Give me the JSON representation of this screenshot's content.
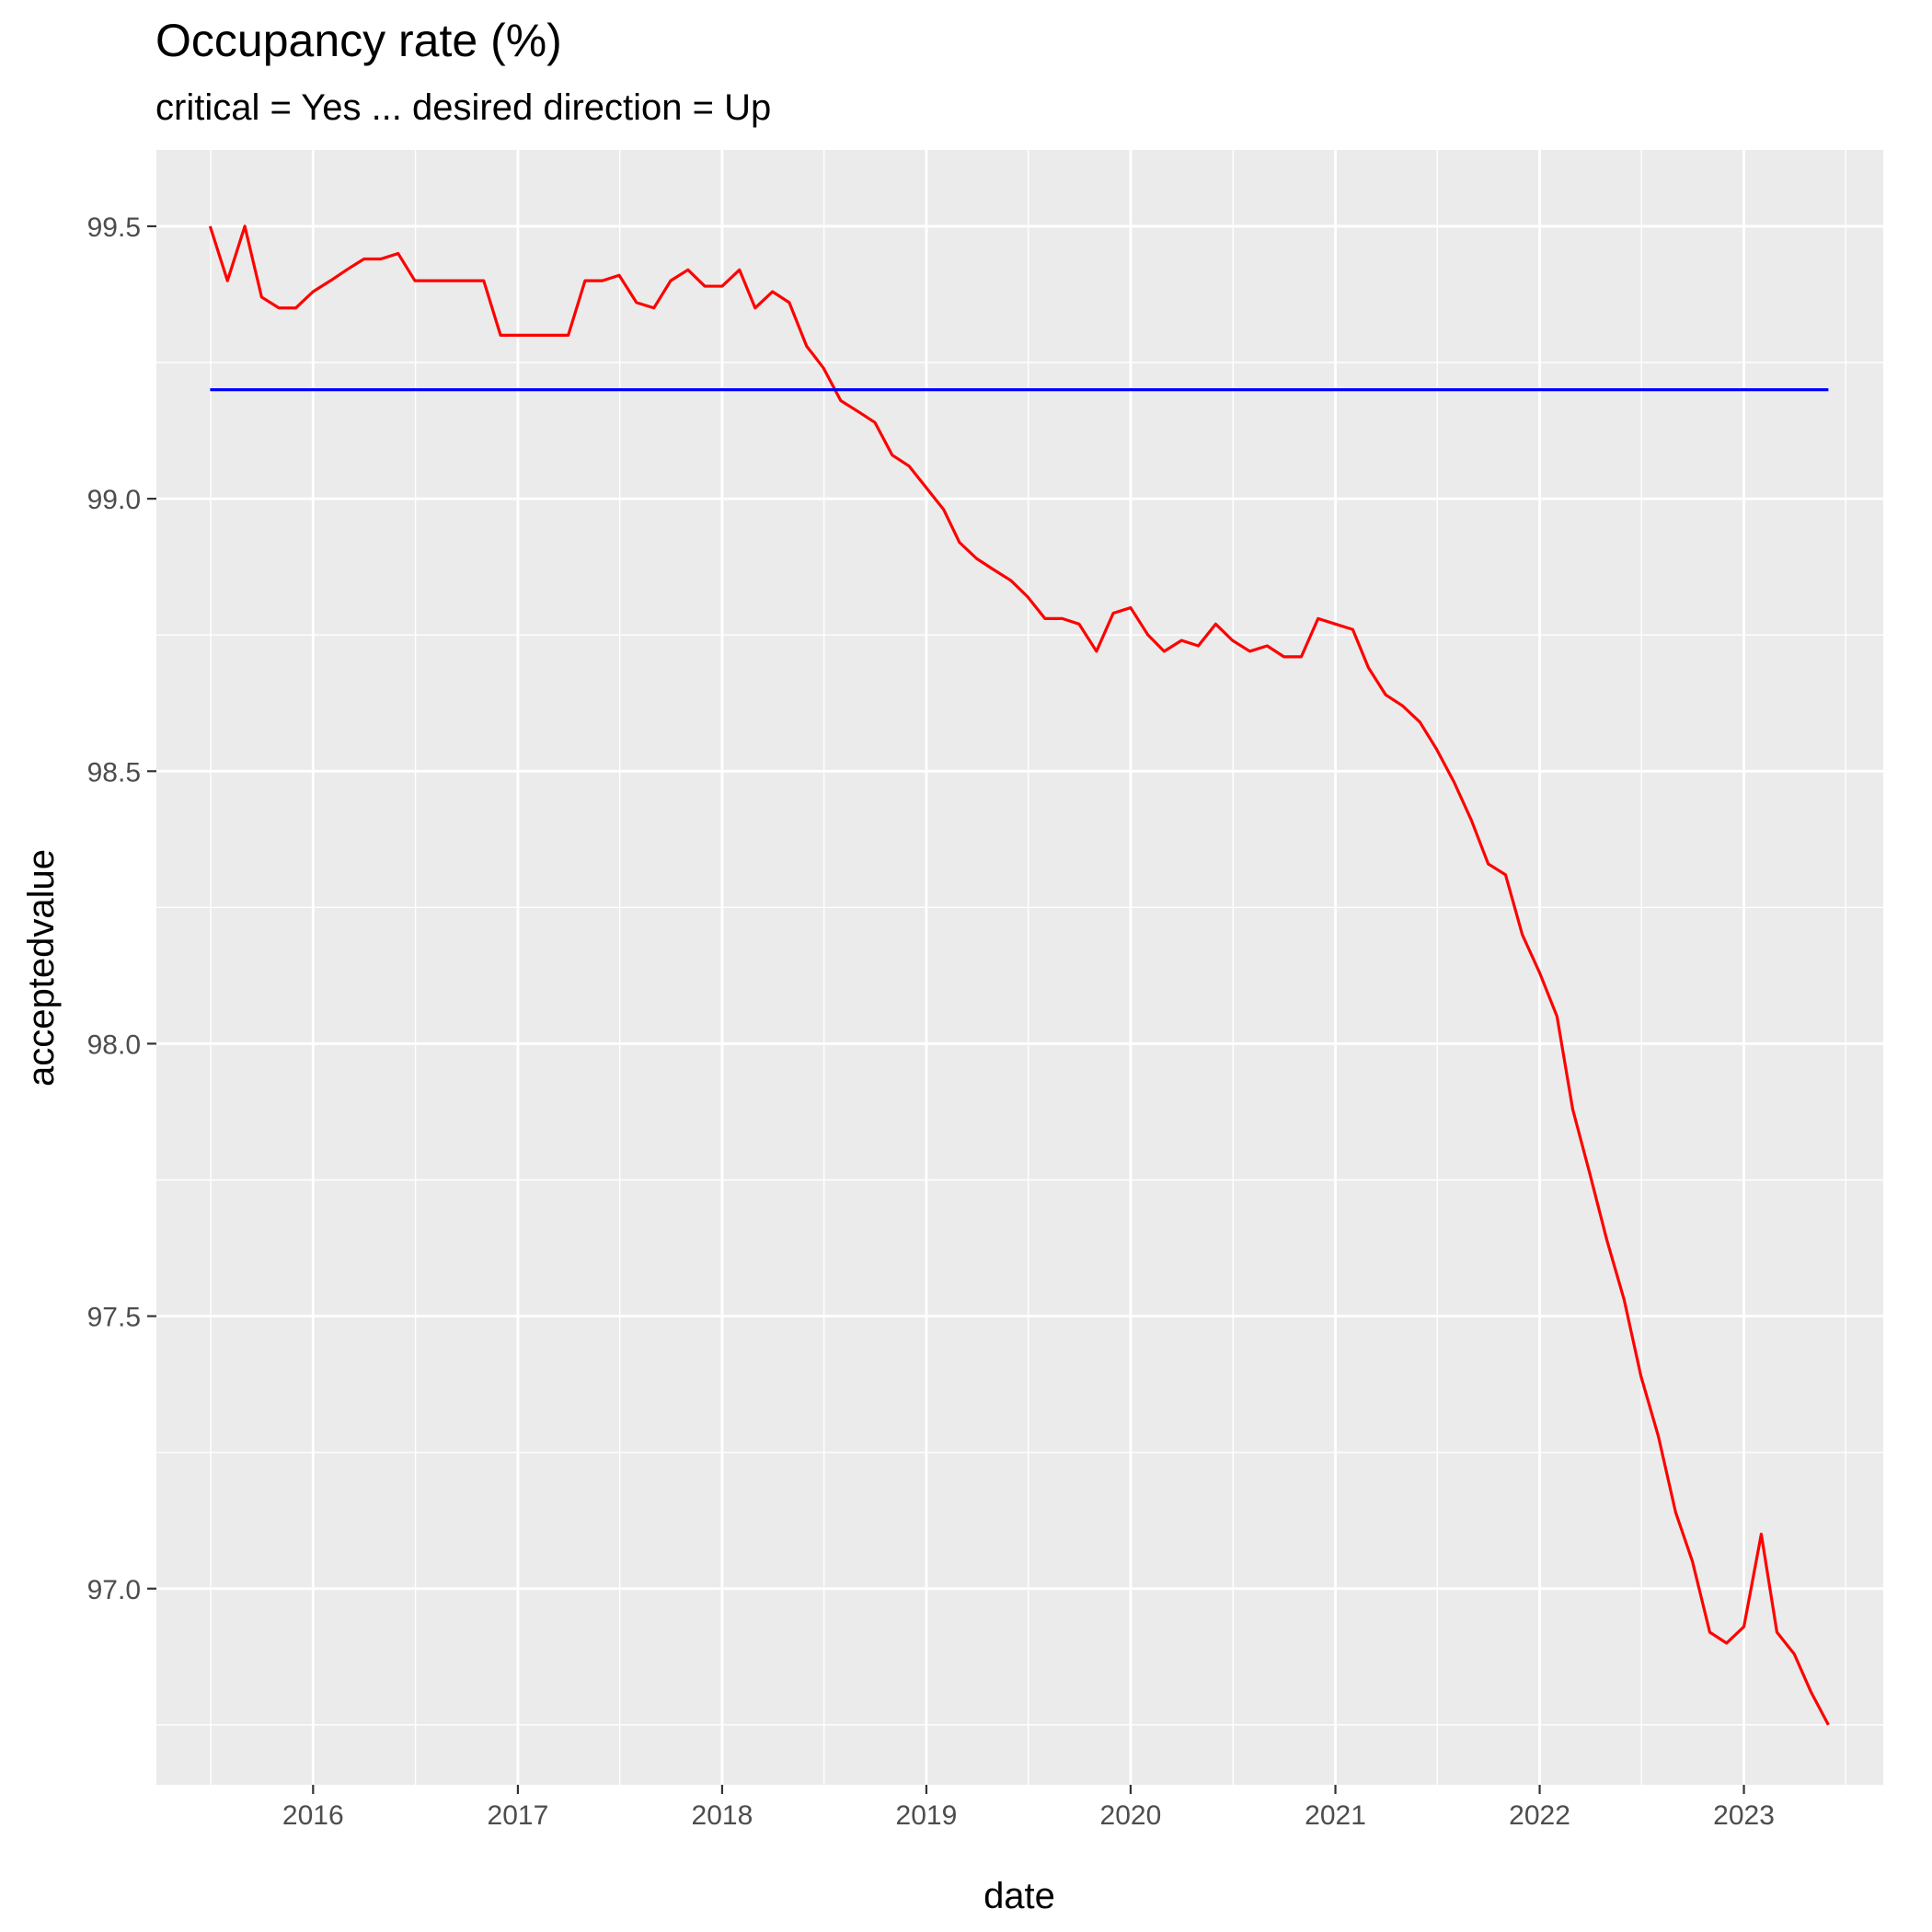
{
  "chart_data": {
    "type": "line",
    "title": "Occupancy rate (%)",
    "subtitle": "critical = Yes ... desired direction = Up",
    "xlabel": "date",
    "ylabel": "acceptedvalue",
    "xlim": [
      "2015-03-27",
      "2023-09-07"
    ],
    "ylim": [
      96.64,
      99.64
    ],
    "x_ticks": [
      "2016",
      "2017",
      "2018",
      "2019",
      "2020",
      "2021",
      "2022",
      "2023"
    ],
    "y_ticks": [
      "97.0",
      "97.5",
      "98.0",
      "98.5",
      "99.0",
      "99.5"
    ],
    "grid": true,
    "legend": "none",
    "colors": {
      "panel": "#ebebeb",
      "grid": "#ffffff",
      "series": "#ff0000",
      "target": "#0000ff"
    },
    "series": [
      {
        "color": "#ff0000",
        "points": [
          [
            "2015-07-01",
            99.5
          ],
          [
            "2015-08-01",
            99.4
          ],
          [
            "2015-09-01",
            99.5
          ],
          [
            "2015-10-01",
            99.37
          ],
          [
            "2015-11-01",
            99.35
          ],
          [
            "2015-12-01",
            99.35
          ],
          [
            "2016-01-01",
            99.38
          ],
          [
            "2016-02-01",
            99.4
          ],
          [
            "2016-03-01",
            99.42
          ],
          [
            "2016-04-01",
            99.44
          ],
          [
            "2016-05-01",
            99.44
          ],
          [
            "2016-06-01",
            99.45
          ],
          [
            "2016-07-01",
            99.4
          ],
          [
            "2016-08-01",
            99.4
          ],
          [
            "2016-09-01",
            99.4
          ],
          [
            "2016-10-01",
            99.4
          ],
          [
            "2016-11-01",
            99.4
          ],
          [
            "2016-12-01",
            99.3
          ],
          [
            "2017-01-01",
            99.3
          ],
          [
            "2017-02-01",
            99.3
          ],
          [
            "2017-03-01",
            99.3
          ],
          [
            "2017-04-01",
            99.3
          ],
          [
            "2017-05-01",
            99.4
          ],
          [
            "2017-06-01",
            99.4
          ],
          [
            "2017-07-01",
            99.41
          ],
          [
            "2017-08-01",
            99.36
          ],
          [
            "2017-09-01",
            99.35
          ],
          [
            "2017-10-01",
            99.4
          ],
          [
            "2017-11-01",
            99.42
          ],
          [
            "2017-12-01",
            99.39
          ],
          [
            "2018-01-01",
            99.39
          ],
          [
            "2018-02-01",
            99.42
          ],
          [
            "2018-03-01",
            99.35
          ],
          [
            "2018-04-01",
            99.38
          ],
          [
            "2018-05-01",
            99.36
          ],
          [
            "2018-06-01",
            99.28
          ],
          [
            "2018-07-01",
            99.24
          ],
          [
            "2018-08-01",
            99.18
          ],
          [
            "2018-09-01",
            99.16
          ],
          [
            "2018-10-01",
            99.14
          ],
          [
            "2018-11-01",
            99.08
          ],
          [
            "2018-12-01",
            99.06
          ],
          [
            "2019-01-01",
            99.02
          ],
          [
            "2019-02-01",
            98.98
          ],
          [
            "2019-03-01",
            98.92
          ],
          [
            "2019-04-01",
            98.89
          ],
          [
            "2019-05-01",
            98.87
          ],
          [
            "2019-06-01",
            98.85
          ],
          [
            "2019-07-01",
            98.82
          ],
          [
            "2019-08-01",
            98.78
          ],
          [
            "2019-09-01",
            98.78
          ],
          [
            "2019-10-01",
            98.77
          ],
          [
            "2019-11-01",
            98.72
          ],
          [
            "2019-12-01",
            98.79
          ],
          [
            "2020-01-01",
            98.8
          ],
          [
            "2020-02-01",
            98.75
          ],
          [
            "2020-03-01",
            98.72
          ],
          [
            "2020-04-01",
            98.74
          ],
          [
            "2020-05-01",
            98.73
          ],
          [
            "2020-06-01",
            98.77
          ],
          [
            "2020-07-01",
            98.74
          ],
          [
            "2020-08-01",
            98.72
          ],
          [
            "2020-09-01",
            98.73
          ],
          [
            "2020-10-01",
            98.71
          ],
          [
            "2020-11-01",
            98.71
          ],
          [
            "2020-12-01",
            98.78
          ],
          [
            "2021-01-01",
            98.77
          ],
          [
            "2021-02-01",
            98.76
          ],
          [
            "2021-03-01",
            98.69
          ],
          [
            "2021-04-01",
            98.64
          ],
          [
            "2021-05-01",
            98.62
          ],
          [
            "2021-06-01",
            98.59
          ],
          [
            "2021-07-01",
            98.54
          ],
          [
            "2021-08-01",
            98.48
          ],
          [
            "2021-09-01",
            98.41
          ],
          [
            "2021-10-01",
            98.33
          ],
          [
            "2021-11-01",
            98.31
          ],
          [
            "2021-12-01",
            98.2
          ],
          [
            "2022-01-01",
            98.13
          ],
          [
            "2022-02-01",
            98.05
          ],
          [
            "2022-03-01",
            97.88
          ],
          [
            "2022-04-01",
            97.76
          ],
          [
            "2022-05-01",
            97.64
          ],
          [
            "2022-06-01",
            97.53
          ],
          [
            "2022-07-01",
            97.39
          ],
          [
            "2022-08-01",
            97.28
          ],
          [
            "2022-09-01",
            97.14
          ],
          [
            "2022-10-01",
            97.05
          ],
          [
            "2022-11-01",
            96.92
          ],
          [
            "2022-12-01",
            96.9
          ],
          [
            "2023-01-01",
            96.93
          ],
          [
            "2023-02-01",
            97.1
          ],
          [
            "2023-03-01",
            96.92
          ],
          [
            "2023-04-01",
            96.88
          ],
          [
            "2023-05-01",
            96.81
          ],
          [
            "2023-06-01",
            96.75
          ]
        ]
      },
      {
        "color": "#0000ff",
        "points": [
          [
            "2015-07-01",
            99.2
          ],
          [
            "2023-06-01",
            99.2
          ]
        ]
      }
    ]
  }
}
